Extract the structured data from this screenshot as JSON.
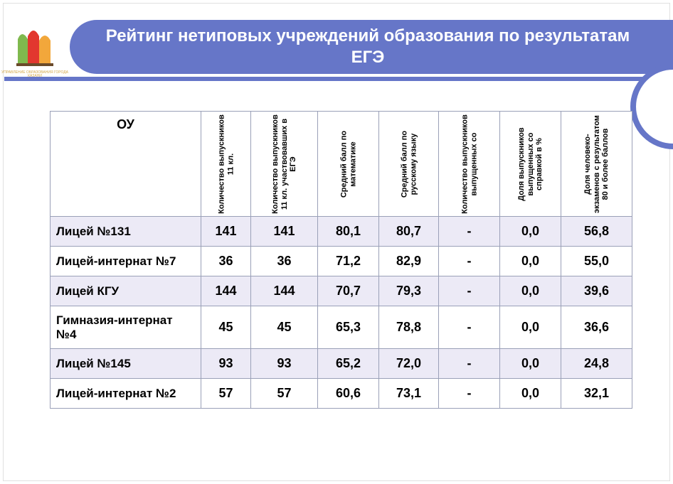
{
  "title": "Рейтинг нетиповых учреждений образования по результатам ЕГЭ",
  "logo_caption": "УПРАВЛЕНИЕ ОБРАЗОВАНИЯ\nГОРОДА КАЗАНИ",
  "colors": {
    "accent": "#6676c8",
    "row_alt": "#eceaf6",
    "border": "#9aa0b8",
    "text": "#000000",
    "title_text": "#ffffff"
  },
  "table": {
    "first_col_header": "ОУ",
    "columns": [
      "Количество выпускников 11 кл.",
      "Количество выпускников 11 кл. участвовавших в ЕГЭ",
      "Средний балл по математике",
      "Средний балл по русскому языку",
      "Количество выпускников выпущенных со",
      "Доля выпускников выпущенных со справкой в %",
      "Доля человеко-экзаменов с результатом 80 и более баллов"
    ],
    "rows": [
      {
        "name": "Лицей №131",
        "vals": [
          "141",
          "141",
          "80,1",
          "80,7",
          "-",
          "0,0",
          "56,8"
        ],
        "alt": true
      },
      {
        "name": "Лицей-интернат №7",
        "vals": [
          "36",
          "36",
          "71,2",
          "82,9",
          "-",
          "0,0",
          "55,0"
        ],
        "alt": false
      },
      {
        "name": "Лицей КГУ",
        "vals": [
          "144",
          "144",
          "70,7",
          "79,3",
          "-",
          "0,0",
          "39,6"
        ],
        "alt": true
      },
      {
        "name": "Гимназия-интернат №4",
        "vals": [
          "45",
          "45",
          "65,3",
          "78,8",
          "-",
          "0,0",
          "36,6"
        ],
        "alt": false
      },
      {
        "name": "Лицей №145",
        "vals": [
          "93",
          "93",
          "65,2",
          "72,0",
          "-",
          "0,0",
          "24,8"
        ],
        "alt": true
      },
      {
        "name": "Лицей-интернат №2",
        "vals": [
          "57",
          "57",
          "60,6",
          "73,1",
          "-",
          "0,0",
          "32,1"
        ],
        "alt": false
      }
    ]
  }
}
